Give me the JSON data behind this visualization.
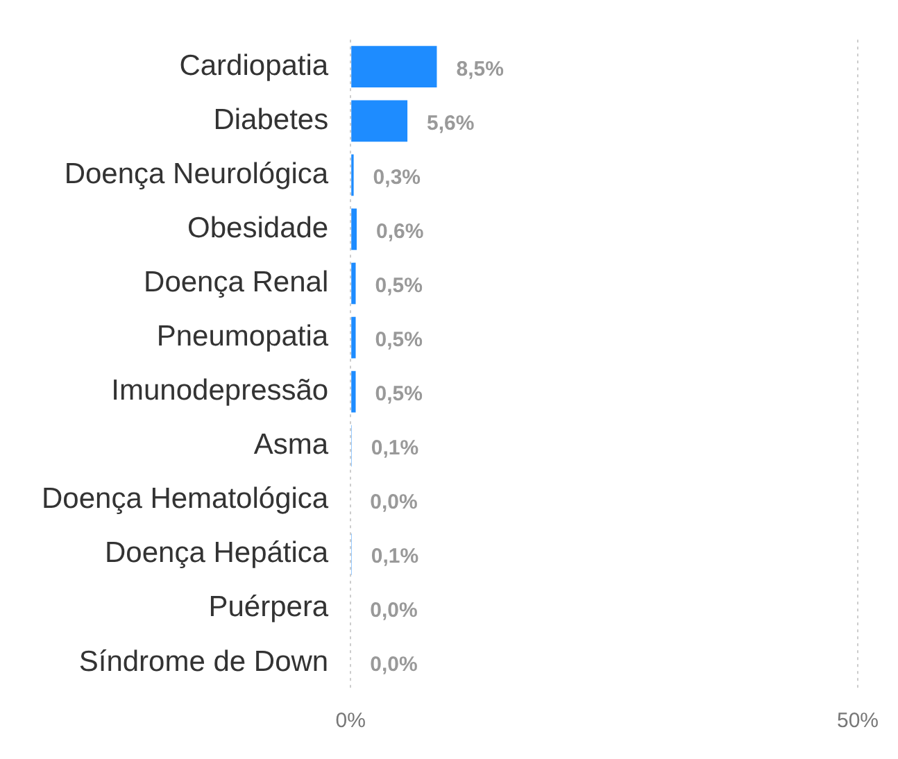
{
  "chart_data": {
    "type": "bar",
    "orientation": "horizontal",
    "categories": [
      "Cardiopatia",
      "Diabetes",
      "Doença Neurológica",
      "Obesidade",
      "Doença Renal",
      "Pneumopatia",
      "Imunodepressão",
      "Asma",
      "Doença Hematológica",
      "Doença Hepática",
      "Puérpera",
      "Síndrome de Down"
    ],
    "values": [
      8.5,
      5.6,
      0.3,
      0.6,
      0.5,
      0.5,
      0.5,
      0.1,
      0.0,
      0.1,
      0.0,
      0.0
    ],
    "value_labels": [
      "8,5%",
      "5,6%",
      "0,3%",
      "0,6%",
      "0,5%",
      "0,5%",
      "0,5%",
      "0,1%",
      "0,0%",
      "0,1%",
      "0,0%",
      "0,0%"
    ],
    "color": "#1e8cff",
    "xlim": [
      0,
      50
    ],
    "xticks": [
      {
        "value": 0,
        "label": "0%"
      },
      {
        "value": 50,
        "label": "50%"
      }
    ],
    "grid": "x",
    "legend": false
  }
}
